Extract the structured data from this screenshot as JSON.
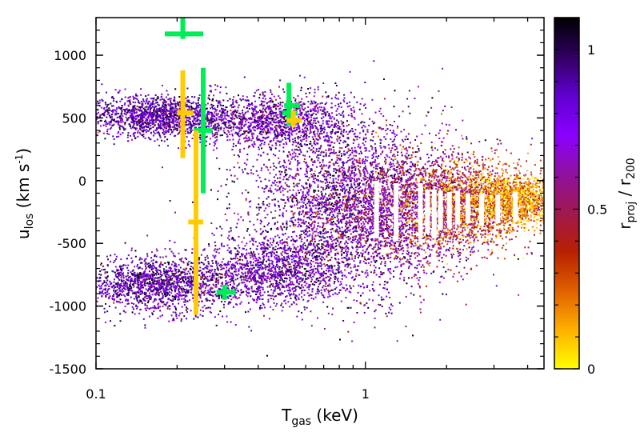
{
  "chart_data": {
    "type": "scatter",
    "title": "",
    "xlabel": "T",
    "xlabel_sub": "gas",
    "xlabel_unit": " (keV)",
    "ylabel": "u",
    "ylabel_sub": "los",
    "ylabel_unit_pre": " (km s",
    "ylabel_unit_sup": "-1",
    "ylabel_unit_post": ")",
    "colorbar_label_r": "r",
    "colorbar_label_proj": "proj",
    "colorbar_label_sep": " / r",
    "colorbar_label_200": "200",
    "x_scale": "log",
    "xlim": [
      0.1,
      4.6
    ],
    "ylim": [
      -1500,
      1300
    ],
    "grid": false,
    "x_ticks": [
      {
        "v": 0.1,
        "label": "0.1"
      },
      {
        "v": 1,
        "label": "1"
      }
    ],
    "y_ticks": [
      {
        "v": 1000,
        "label": "1000"
      },
      {
        "v": 500,
        "label": "500"
      },
      {
        "v": 0,
        "label": "0"
      },
      {
        "v": -500,
        "label": "-500"
      },
      {
        "v": -1000,
        "label": "-1000"
      },
      {
        "v": -1500,
        "label": "-1500"
      }
    ],
    "colorbar": {
      "range": [
        0,
        1.1
      ],
      "ticks": [
        {
          "v": 0,
          "label": "0"
        },
        {
          "v": 0.5,
          "label": "0.5"
        },
        {
          "v": 1,
          "label": "1"
        }
      ],
      "colors": [
        "#ffff00",
        "#ffb000",
        "#e06000",
        "#b82000",
        "#a01850",
        "#9010a0",
        "#8a00ff",
        "#6000d0",
        "#300060",
        "#000000"
      ]
    },
    "clouds": [
      {
        "x": 0.17,
        "sx": 0.14,
        "y": 520,
        "sy": 85,
        "n": 1500,
        "c": 0.85,
        "sc": 0.15
      },
      {
        "x": 0.17,
        "sx": 0.14,
        "y": -820,
        "sy": 110,
        "n": 1500,
        "c": 0.85,
        "sc": 0.15
      },
      {
        "x": 0.45,
        "sx": 0.14,
        "y": 480,
        "sy": 110,
        "n": 1300,
        "c": 0.8,
        "sc": 0.17
      },
      {
        "x": 0.45,
        "sx": 0.14,
        "y": -720,
        "sy": 130,
        "n": 1300,
        "c": 0.8,
        "sc": 0.17
      },
      {
        "x": 0.8,
        "sx": 0.18,
        "y": -180,
        "sy": 350,
        "n": 2600,
        "c": 0.8,
        "sc": 0.2
      },
      {
        "x": 1.4,
        "sx": 0.17,
        "y": -200,
        "sy": 260,
        "n": 2200,
        "c": 0.6,
        "sc": 0.22
      },
      {
        "x": 2.3,
        "sx": 0.12,
        "y": -180,
        "sy": 170,
        "n": 1600,
        "c": 0.35,
        "sc": 0.18
      },
      {
        "x": 3.5,
        "sx": 0.1,
        "y": -150,
        "sy": 100,
        "n": 1300,
        "c": 0.15,
        "sc": 0.12
      }
    ],
    "series": [
      {
        "color": "#00ee55",
        "points": [
          {
            "x": 0.21,
            "y": 1170,
            "xlo": 0.18,
            "xhi": 0.25,
            "ylo": 1130,
            "yhi": 1310
          },
          {
            "x": 0.25,
            "y": 400,
            "xlo": 0.23,
            "xhi": 0.27,
            "ylo": -100,
            "yhi": 900
          },
          {
            "x": 0.52,
            "y": 600,
            "xlo": 0.5,
            "xhi": 0.57,
            "ylo": 500,
            "yhi": 780
          },
          {
            "x": 0.52,
            "y": 540,
            "xlo": 0.49,
            "xhi": 0.56,
            "ylo": 440,
            "yhi": 660
          },
          {
            "x": 0.3,
            "y": -890,
            "xlo": 0.28,
            "xhi": 0.33,
            "ylo": -950,
            "yhi": -830
          }
        ]
      },
      {
        "color": "#ffcc00",
        "points": [
          {
            "x": 0.21,
            "y": 540,
            "xlo": 0.2,
            "xhi": 0.23,
            "ylo": 180,
            "yhi": 880
          },
          {
            "x": 0.235,
            "y": -330,
            "xlo": 0.22,
            "xhi": 0.25,
            "ylo": -1070,
            "yhi": 400
          },
          {
            "x": 0.54,
            "y": 480,
            "xlo": 0.51,
            "xhi": 0.58,
            "ylo": 430,
            "yhi": 560
          }
        ]
      },
      {
        "color": "#ffffff",
        "points": [
          {
            "x": 1.1,
            "y": -230,
            "xlo": 1.08,
            "xhi": 1.12,
            "ylo": -460,
            "yhi": 0
          },
          {
            "x": 1.3,
            "y": -260,
            "xlo": 1.28,
            "xhi": 1.32,
            "ylo": -480,
            "yhi": -20
          },
          {
            "x": 1.6,
            "y": -250,
            "xlo": 1.56,
            "xhi": 1.64,
            "ylo": -460,
            "yhi": -20
          },
          {
            "x": 1.7,
            "y": -240,
            "xlo": 1.66,
            "xhi": 1.75,
            "ylo": -420,
            "yhi": -70
          },
          {
            "x": 1.8,
            "y": -270,
            "xlo": 1.76,
            "xhi": 1.84,
            "ylo": -460,
            "yhi": -70
          },
          {
            "x": 1.9,
            "y": -230,
            "xlo": 1.86,
            "xhi": 1.95,
            "ylo": -390,
            "yhi": -80
          },
          {
            "x": 2.05,
            "y": -240,
            "xlo": 2.0,
            "xhi": 2.1,
            "ylo": -380,
            "yhi": -90
          },
          {
            "x": 2.2,
            "y": -220,
            "xlo": 2.15,
            "xhi": 2.25,
            "ylo": -350,
            "yhi": -80
          },
          {
            "x": 2.4,
            "y": -220,
            "xlo": 2.35,
            "xhi": 2.46,
            "ylo": -340,
            "yhi": -100
          },
          {
            "x": 2.7,
            "y": -230,
            "xlo": 2.63,
            "xhi": 2.77,
            "ylo": -360,
            "yhi": -100
          },
          {
            "x": 3.1,
            "y": -230,
            "xlo": 3.03,
            "xhi": 3.17,
            "ylo": -340,
            "yhi": -110
          },
          {
            "x": 3.6,
            "y": -220,
            "xlo": 3.52,
            "xhi": 3.68,
            "ylo": -330,
            "yhi": -90
          }
        ]
      }
    ]
  }
}
